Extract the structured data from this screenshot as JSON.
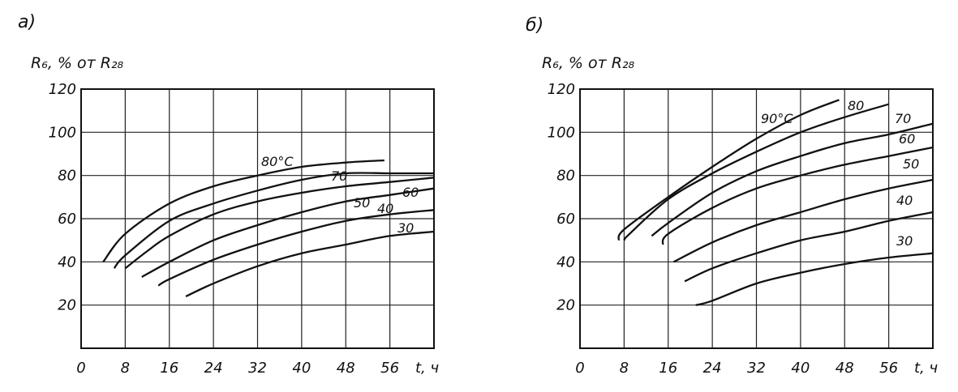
{
  "chart_data": [
    {
      "type": "line",
      "panel_label": "а)",
      "ylabel": "R₆, % от R₂₈",
      "xlabel": "t, ч",
      "x_ticks": [
        "0",
        "8",
        "16",
        "24",
        "32",
        "40",
        "48",
        "56"
      ],
      "y_ticks": [
        "20",
        "40",
        "60",
        "80",
        "100",
        "120"
      ],
      "xlim": [
        0,
        64
      ],
      "ylim": [
        0,
        120
      ],
      "grid": true,
      "series": [
        {
          "name": "80°C",
          "x": [
            4,
            8,
            16,
            24,
            32,
            40,
            48,
            55
          ],
          "y": [
            40,
            53,
            67,
            75,
            80,
            84,
            86,
            87
          ]
        },
        {
          "name": "70",
          "x": [
            6,
            8,
            16,
            24,
            32,
            40,
            48,
            56,
            64
          ],
          "y": [
            37,
            43,
            59,
            67,
            73,
            78,
            81,
            81,
            81
          ]
        },
        {
          "name": "60",
          "x": [
            8,
            12,
            16,
            24,
            32,
            40,
            48,
            56,
            64
          ],
          "y": [
            37,
            45,
            52,
            62,
            68,
            72,
            75,
            77,
            79
          ]
        },
        {
          "name": "50",
          "x": [
            11,
            16,
            24,
            32,
            40,
            48,
            56,
            64
          ],
          "y": [
            33,
            40,
            50,
            57,
            63,
            68,
            71,
            74
          ]
        },
        {
          "name": "40",
          "x": [
            14,
            16,
            24,
            32,
            40,
            48,
            56,
            64
          ],
          "y": [
            29,
            32,
            41,
            48,
            54,
            59,
            62,
            64
          ]
        },
        {
          "name": "30",
          "x": [
            19,
            24,
            32,
            40,
            48,
            56,
            64
          ],
          "y": [
            24,
            30,
            38,
            44,
            48,
            52,
            54
          ]
        }
      ]
    },
    {
      "type": "line",
      "panel_label": "б)",
      "ylabel": "R₆, % от R₂₈",
      "xlabel": "t, ч",
      "x_ticks": [
        "0",
        "8",
        "16",
        "24",
        "32",
        "40",
        "48",
        "56"
      ],
      "y_ticks": [
        "20",
        "40",
        "60",
        "80",
        "100",
        "120"
      ],
      "xlim": [
        0,
        64
      ],
      "ylim": [
        0,
        120
      ],
      "grid": true,
      "series": [
        {
          "name": "90°C",
          "x": [
            7,
            8,
            16,
            24,
            32,
            40,
            47
          ],
          "y": [
            50,
            55,
            70,
            84,
            97,
            108,
            115
          ]
        },
        {
          "name": "80",
          "x": [
            8,
            9,
            16,
            24,
            32,
            40,
            48,
            56
          ],
          "y": [
            50,
            53,
            69,
            81,
            91,
            100,
            107,
            113
          ]
        },
        {
          "name": "70",
          "x": [
            13,
            16,
            24,
            32,
            40,
            48,
            56,
            64
          ],
          "y": [
            52,
            58,
            72,
            82,
            89,
            95,
            99,
            104
          ]
        },
        {
          "name": "60",
          "x": [
            15,
            16,
            24,
            32,
            40,
            48,
            56,
            64
          ],
          "y": [
            48,
            53,
            65,
            74,
            80,
            85,
            89,
            93
          ]
        },
        {
          "name": "50",
          "x": [
            17,
            24,
            32,
            40,
            48,
            56,
            64
          ],
          "y": [
            40,
            49,
            57,
            63,
            69,
            74,
            78
          ]
        },
        {
          "name": "40",
          "x": [
            19,
            24,
            32,
            40,
            48,
            56,
            64
          ],
          "y": [
            31,
            37,
            44,
            50,
            54,
            59,
            63
          ]
        },
        {
          "name": "30",
          "x": [
            21,
            24,
            32,
            40,
            48,
            56,
            64
          ],
          "y": [
            20,
            22,
            30,
            35,
            39,
            42,
            44
          ]
        }
      ]
    }
  ]
}
